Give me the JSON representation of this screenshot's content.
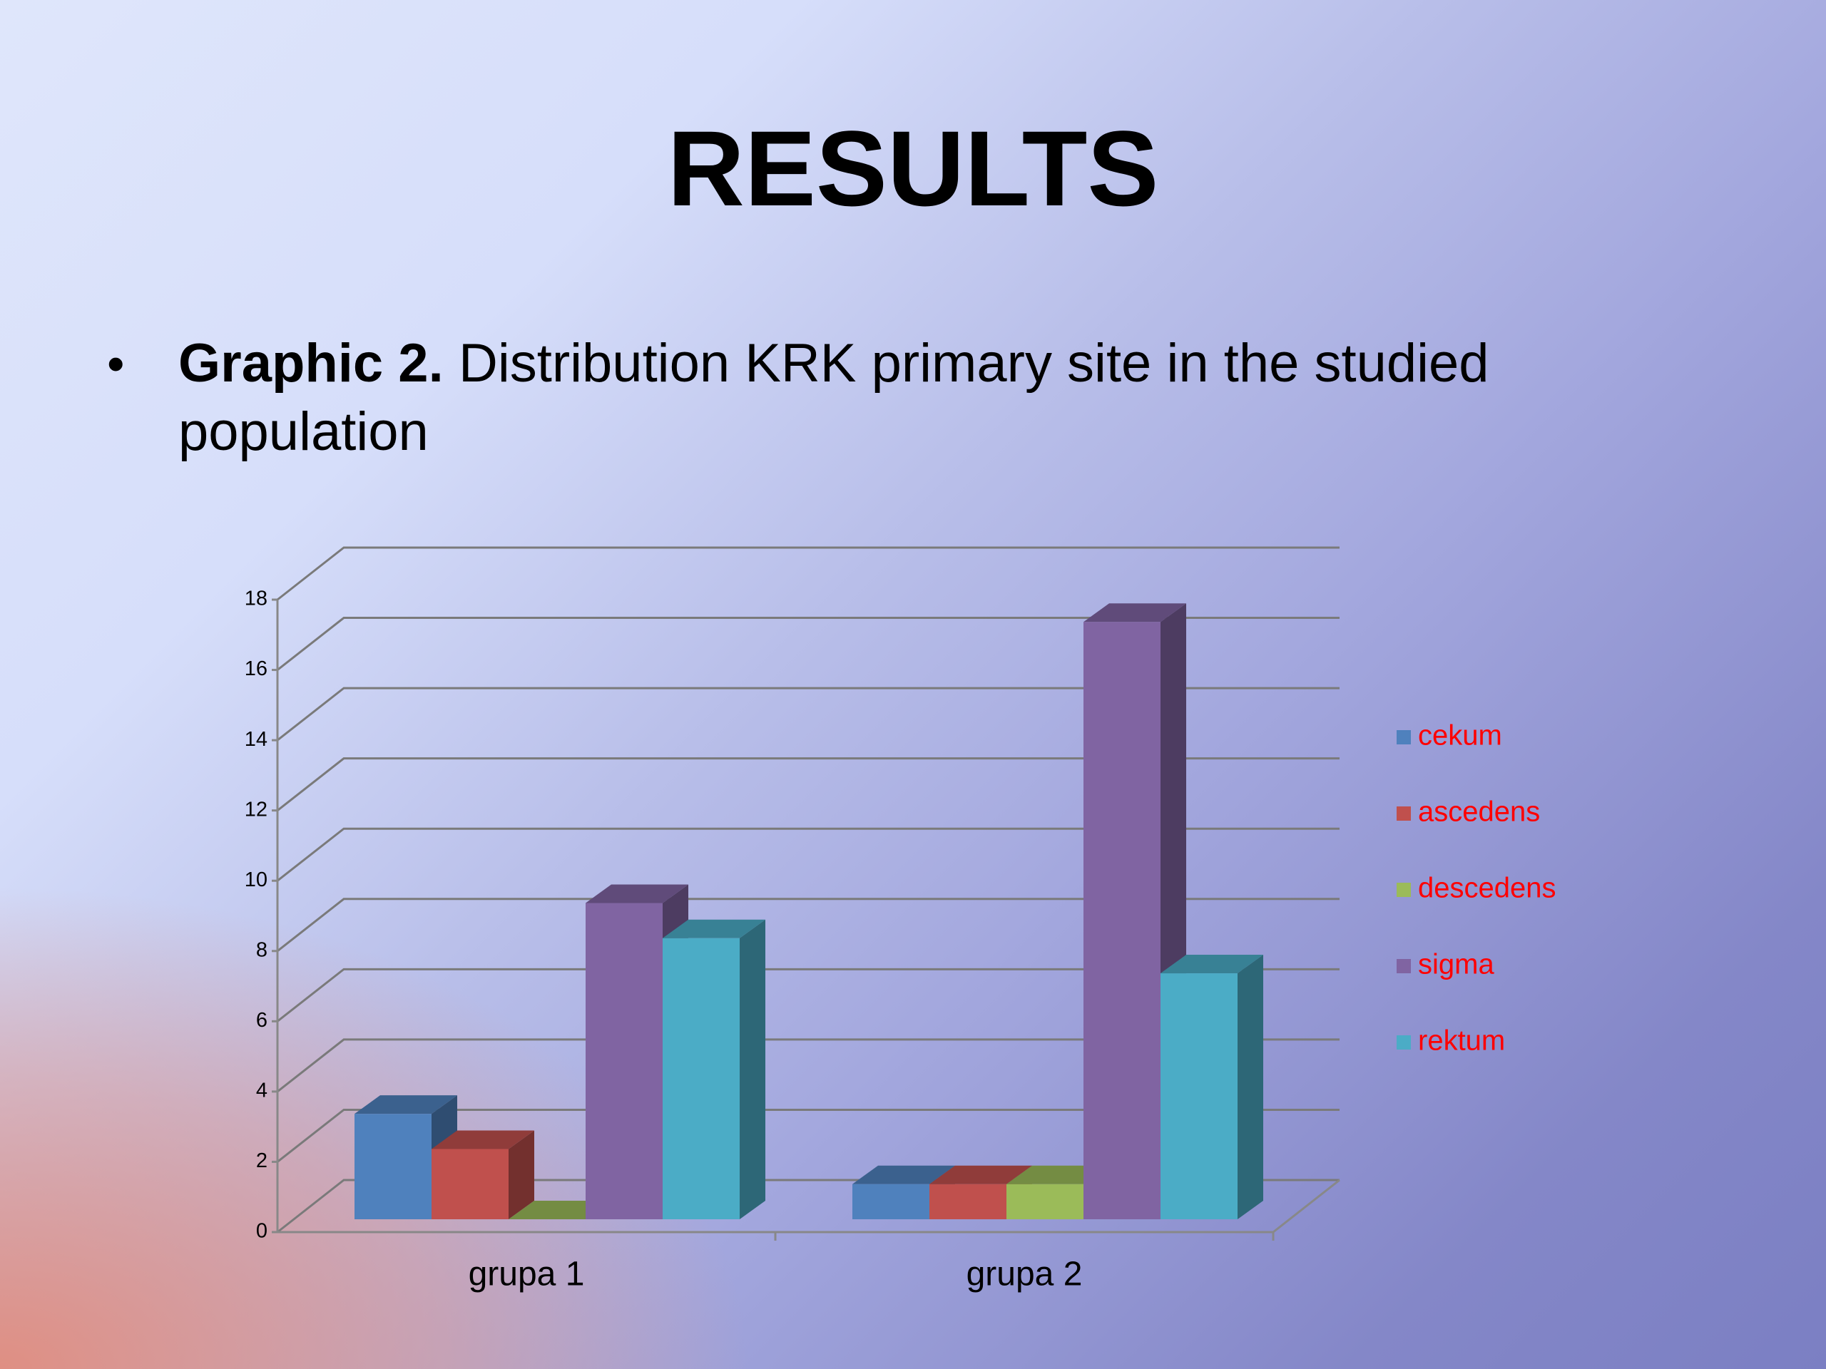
{
  "title": "RESULTS",
  "caption": {
    "label": "Graphic 2.",
    "text": "Distribution KRK primary site in the studied population"
  },
  "chart_data": {
    "type": "bar3d",
    "categories": [
      "grupa 1",
      "grupa 2"
    ],
    "series": [
      {
        "name": "cekum",
        "color": "#4f81bd",
        "values": [
          3,
          1
        ]
      },
      {
        "name": "ascedens",
        "color": "#c0504d",
        "values": [
          2,
          1
        ]
      },
      {
        "name": "descedens",
        "color": "#9bbb59",
        "values": [
          0,
          1
        ]
      },
      {
        "name": "sigma",
        "color": "#8064a2",
        "values": [
          9,
          17
        ]
      },
      {
        "name": "rektum",
        "color": "#4bacc6",
        "values": [
          8,
          7
        ]
      }
    ],
    "ylim": [
      0,
      18
    ],
    "yticks": [
      0,
      2,
      4,
      6,
      8,
      10,
      12,
      14,
      16,
      18
    ],
    "grid": true,
    "legend": "right",
    "legend_text_color": "#ff0000"
  }
}
